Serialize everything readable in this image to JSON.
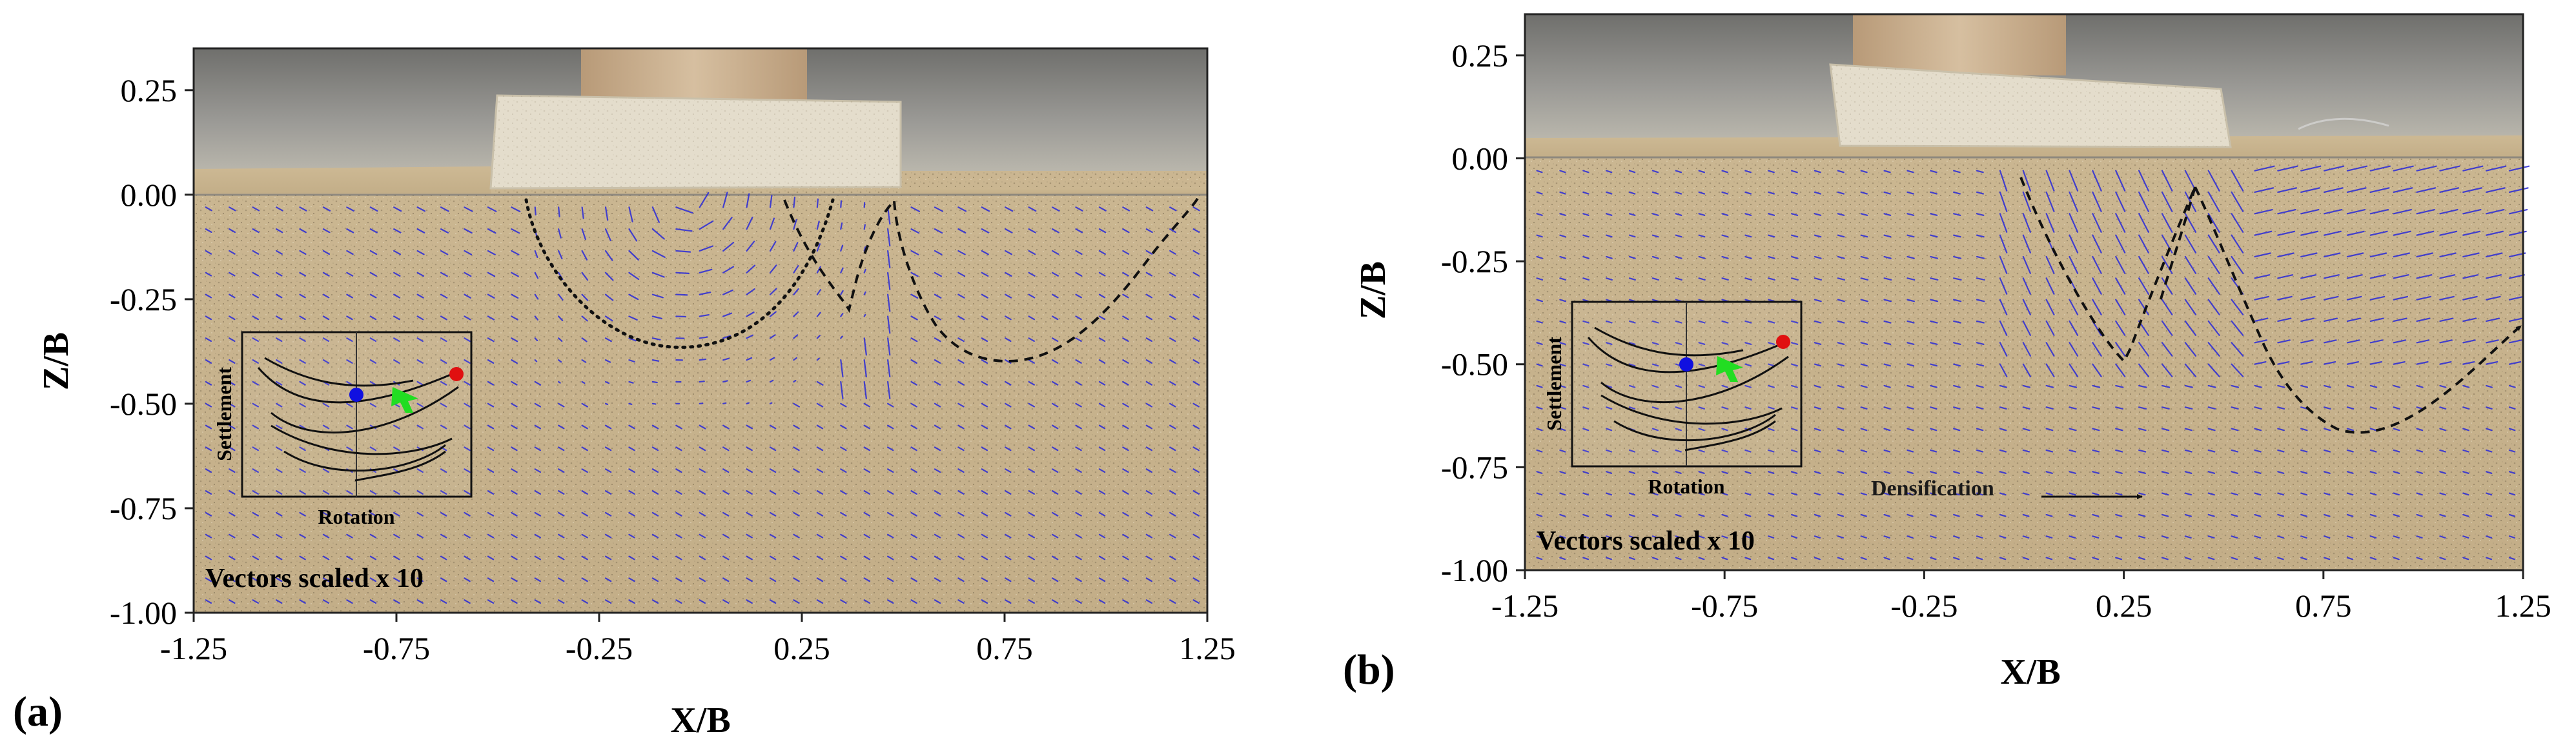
{
  "chart_data": [
    {
      "type": "piv_vector_field",
      "panel_label": "(a)",
      "xlabel": "X/B",
      "ylabel": "Z/B",
      "xlim": [
        -1.25,
        1.25
      ],
      "ylim": [
        -1.0,
        0.35
      ],
      "x_ticks": [
        "-1.25",
        "-0.75",
        "-0.25",
        "0.25",
        "0.75",
        "1.25"
      ],
      "y_ticks": [
        "0.25",
        "0.00",
        "-0.25",
        "-0.50",
        "-0.75",
        "-1.00"
      ],
      "annotation": "Vectors scaled x 10",
      "inset": {
        "x_label": "Rotation",
        "y_label": "Settlement"
      }
    },
    {
      "type": "piv_vector_field",
      "panel_label": "(b)",
      "xlabel": "X/B",
      "ylabel": "Z/B",
      "xlim": [
        -1.25,
        1.25
      ],
      "ylim": [
        -1.0,
        0.35
      ],
      "x_ticks": [
        "-1.25",
        "-0.75",
        "-0.25",
        "0.25",
        "0.75",
        "1.25"
      ],
      "y_ticks": [
        "0.25",
        "0.00",
        "-0.25",
        "-0.50",
        "-0.75",
        "-1.00"
      ],
      "annotation": "Vectors scaled x 10",
      "extra_annotation": "Densification",
      "inset": {
        "x_label": "Rotation",
        "y_label": "Settlement"
      }
    }
  ],
  "colors": {
    "sand": "#c9b590",
    "sand_dark": "#a89672",
    "glass": "#8c8c88",
    "footing": "#e3dccb",
    "vector": "#2a2ad8",
    "blue_dot": "#1010e0",
    "red_dot": "#e01010",
    "green_arrow": "#22dd22"
  }
}
